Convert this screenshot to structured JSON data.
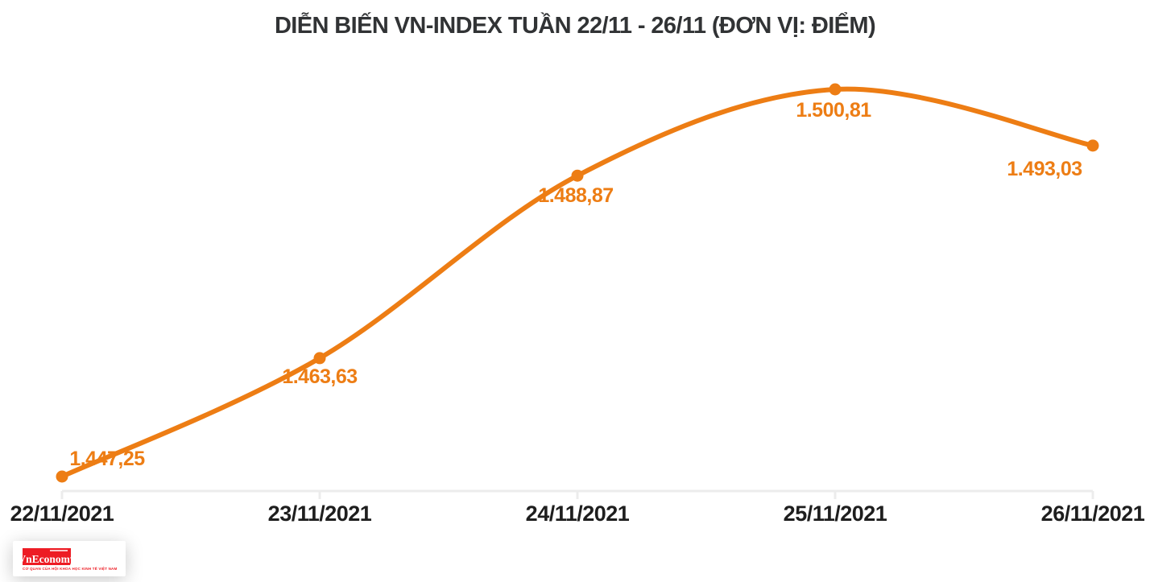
{
  "header": {
    "title": "DIỄN BIẾN VN-INDEX TUẦN 22/11 - 26/11 (ĐƠN VỊ: ĐIỂM)"
  },
  "chart_data": {
    "type": "line",
    "title": "DIỄN BIẾN VN-INDEX TUẦN 22/11 - 26/11 (ĐƠN VỊ: ĐIỂM)",
    "series_name": "VN-INDEX",
    "categories": [
      "22/11/2021",
      "23/11/2021",
      "24/11/2021",
      "25/11/2021",
      "26/11/2021"
    ],
    "values": [
      1447.25,
      1463.63,
      1488.87,
      1500.81,
      1493.03
    ],
    "point_labels": [
      "1.447,25",
      "1.463,63",
      "1.488,87",
      "1.500,81",
      "1.493,03"
    ],
    "ylim": [
      1447.25,
      1500.81
    ],
    "xlabel": "",
    "ylabel": "",
    "grid": false,
    "legend": "none",
    "marker": "circle",
    "smooth": true
  },
  "colors": {
    "line_orange": "#ED7D14",
    "point_label_orange": "#ED7D14",
    "axis_gray": "#ECECEC",
    "axis_text_dark": "#1E1E1E",
    "title_dark": "#313335",
    "logo_red": "#ED1C24",
    "background": "#FFFFFF"
  },
  "footer": {
    "logo_text": "VnEconomy",
    "logo_tagline": "CƠ QUAN CỦA HỘI KHOA HỌC KINH TẾ VIỆT NAM"
  }
}
